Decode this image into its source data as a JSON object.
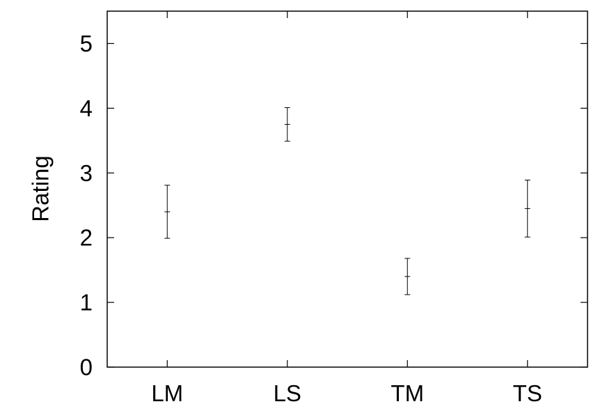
{
  "chart_data": {
    "type": "scatter",
    "ylabel": "Rating",
    "ylim": [
      0,
      5.5
    ],
    "yticks": [
      0,
      1,
      2,
      3,
      4,
      5
    ],
    "categories": [
      "LM",
      "LS",
      "TM",
      "TS"
    ],
    "points": [
      {
        "category": "LM",
        "value": 2.4,
        "low": 1.99,
        "high": 2.81
      },
      {
        "category": "LS",
        "value": 3.75,
        "low": 3.49,
        "high": 4.01
      },
      {
        "category": "TM",
        "value": 1.4,
        "low": 1.12,
        "high": 1.68
      },
      {
        "category": "TS",
        "value": 2.45,
        "low": 2.01,
        "high": 2.89
      }
    ],
    "grid": false,
    "legend": "none",
    "color": "#000000"
  }
}
